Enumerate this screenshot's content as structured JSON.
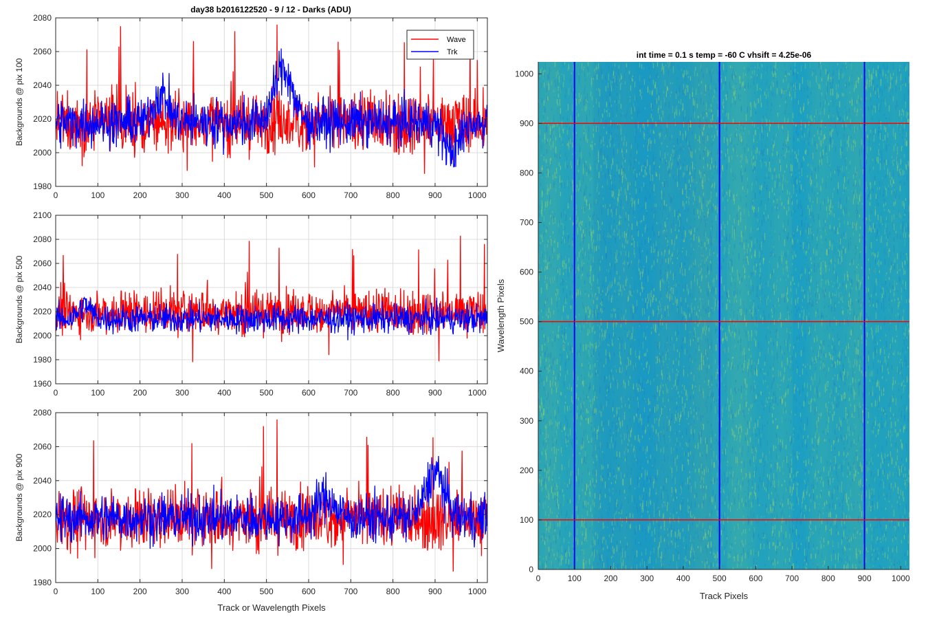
{
  "figure": {
    "title": "day38 b2016122520 - 9 / 12 - Darks (ADU)",
    "heatmap_title": "int time = 0.1 s   temp = -60 C   vhsift = 4.25e-06"
  },
  "colors": {
    "wave": "#ff0000",
    "trk": "#0000ff",
    "grid": "#dcdcdc",
    "heatmap_base": "#1a9fc4",
    "heatmap_noise_light": "#8fcf6a",
    "heatmap_noise_dark": "#1e7fc0"
  },
  "chart_data": [
    {
      "type": "line",
      "title": "day38 b2016122520 - 9 / 12 - Darks (ADU)",
      "xlabel": "",
      "ylabel": "Backgrounds @ pix 100",
      "xlim": [
        0,
        1024
      ],
      "ylim": [
        1980,
        2080
      ],
      "xticks": [
        0,
        100,
        200,
        300,
        400,
        500,
        600,
        700,
        800,
        900,
        1000
      ],
      "yticks": [
        1980,
        2000,
        2020,
        2040,
        2060,
        2080
      ],
      "grid": true,
      "legend": {
        "position": "top-right",
        "entries": [
          "Wave",
          "Trk"
        ]
      },
      "series": [
        {
          "name": "Wave",
          "color": "#ff0000",
          "mean": 2018,
          "noise": 9,
          "spike_up": 2076,
          "spike_down": 1987,
          "x_sample": [
            0,
            50,
            150,
            250,
            350,
            450,
            525,
            600,
            700,
            800,
            900,
            1000
          ],
          "y_sample": [
            2020,
            2018,
            2063,
            2015,
            2012,
            2019,
            2076,
            2020,
            2017,
            2016,
            2018,
            2055
          ]
        },
        {
          "name": "Trk",
          "color": "#0000ff",
          "mean": 2018,
          "noise": 7,
          "bumps": [
            [
              250,
              2035,
              25
            ],
            [
              540,
              2050,
              30
            ],
            [
              940,
              2000,
              25
            ]
          ],
          "x_sample": [
            0,
            100,
            250,
            400,
            540,
            700,
            850,
            940,
            1020
          ],
          "y_sample": [
            2015,
            2020,
            2038,
            2020,
            2055,
            2018,
            2015,
            1997,
            2015
          ]
        }
      ]
    },
    {
      "type": "line",
      "xlabel": "",
      "ylabel": "Backgrounds @ pix 500",
      "xlim": [
        0,
        1024
      ],
      "ylim": [
        1960,
        2100
      ],
      "xticks": [
        0,
        100,
        200,
        300,
        400,
        500,
        600,
        700,
        800,
        900,
        1000
      ],
      "yticks": [
        1960,
        1980,
        2000,
        2020,
        2040,
        2060,
        2080,
        2100
      ],
      "grid": true,
      "series": [
        {
          "name": "Wave",
          "color": "#ff0000",
          "mean": 2020,
          "noise": 9,
          "spike_up": 2083,
          "spike_down": 1978,
          "x_sample": [
            0,
            100,
            200,
            325,
            425,
            530,
            650,
            800,
            960,
            1000
          ],
          "y_sample": [
            2020,
            2022,
            2018,
            1978,
            2020,
            2073,
            2022,
            2020,
            2083,
            2020
          ]
        },
        {
          "name": "Trk",
          "color": "#0000ff",
          "mean": 2014,
          "noise": 6,
          "bumps": [
            [
              70,
              2025,
              20
            ]
          ],
          "x_sample": [
            0,
            70,
            200,
            400,
            600,
            800,
            1000
          ],
          "y_sample": [
            2012,
            2030,
            2012,
            2015,
            2014,
            2013,
            2012
          ]
        }
      ]
    },
    {
      "type": "line",
      "xlabel": "Track or Wavelength Pixels",
      "ylabel": "Backgrounds @ pix 900",
      "xlim": [
        0,
        1024
      ],
      "ylim": [
        1980,
        2080
      ],
      "xticks": [
        0,
        100,
        200,
        300,
        400,
        500,
        600,
        700,
        800,
        900,
        1000
      ],
      "yticks": [
        1980,
        2000,
        2020,
        2040,
        2060,
        2080
      ],
      "grid": true,
      "series": [
        {
          "name": "Wave",
          "color": "#ff0000",
          "mean": 2018,
          "noise": 9,
          "spike_up": 2076,
          "spike_down": 1986,
          "x_sample": [
            0,
            100,
            200,
            370,
            525,
            640,
            800,
            1000
          ],
          "y_sample": [
            2025,
            2020,
            2018,
            1988,
            2076,
            2018,
            2012,
            2020
          ]
        },
        {
          "name": "Trk",
          "color": "#0000ff",
          "mean": 2018,
          "noise": 7,
          "bumps": [
            [
              900,
              2045,
              30
            ],
            [
              640,
              2030,
              30
            ]
          ],
          "x_sample": [
            0,
            200,
            400,
            640,
            800,
            900,
            1000
          ],
          "y_sample": [
            2022,
            2018,
            2016,
            2032,
            2018,
            2045,
            2015
          ]
        }
      ]
    },
    {
      "type": "heatmap",
      "title": "int time = 0.1 s   temp = -60 C   vhsift = 4.25e-06",
      "xlabel": "Track Pixels",
      "ylabel": "Wavelength Pixels",
      "xlim": [
        0,
        1024
      ],
      "ylim": [
        0,
        1024
      ],
      "xticks": [
        0,
        100,
        200,
        300,
        400,
        500,
        600,
        700,
        800,
        900,
        1000
      ],
      "yticks": [
        0,
        100,
        200,
        300,
        400,
        500,
        600,
        700,
        800,
        900,
        1000
      ],
      "vertical_markers": {
        "values": [
          100,
          500,
          900
        ],
        "color": "#0000ff"
      },
      "horizontal_markers": {
        "values": [
          100,
          500,
          900
        ],
        "color": "#ff0000"
      }
    }
  ]
}
